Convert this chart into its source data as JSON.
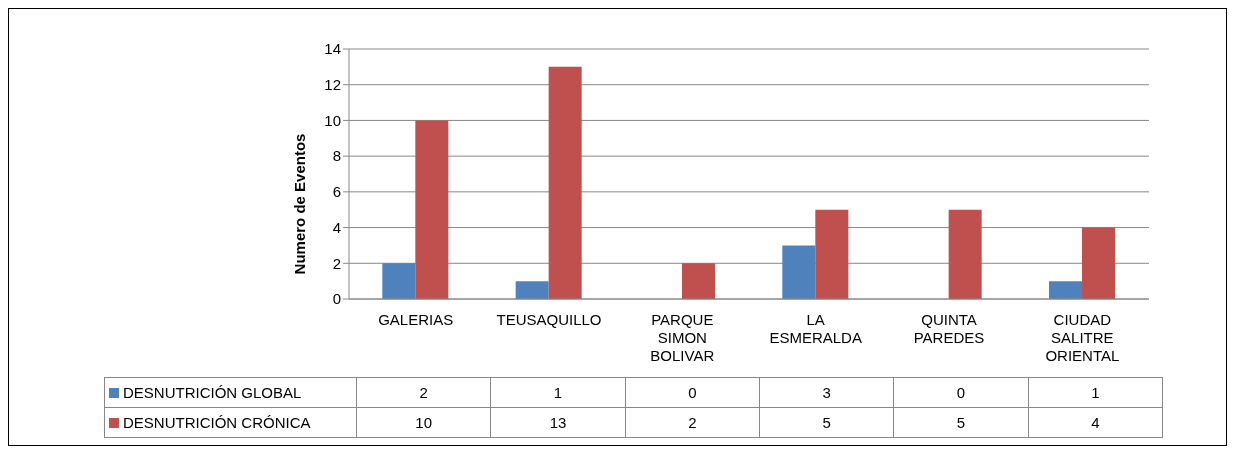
{
  "chart_data": {
    "type": "bar",
    "ylabel": "Numero de Eventos",
    "categories": [
      "GALERIAS",
      "TEUSAQUILLO",
      "PARQUE SIMON BOLIVAR",
      "LA ESMERALDA",
      "QUINTA PAREDES",
      "CIUDAD SALITRE ORIENTAL"
    ],
    "series": [
      {
        "name": "DESNUTRICIÓN GLOBAL",
        "color": "#4f81bd",
        "values": [
          2,
          1,
          0,
          3,
          0,
          1
        ]
      },
      {
        "name": "DESNUTRICIÓN CRÓNICA",
        "color": "#c0504d",
        "values": [
          10,
          13,
          2,
          5,
          5,
          4
        ]
      }
    ],
    "ylim": [
      0,
      14
    ],
    "yticks": [
      0,
      2,
      4,
      6,
      8,
      10,
      12,
      14
    ],
    "grid": "y",
    "legend": "bottom",
    "data_labels": true
  }
}
